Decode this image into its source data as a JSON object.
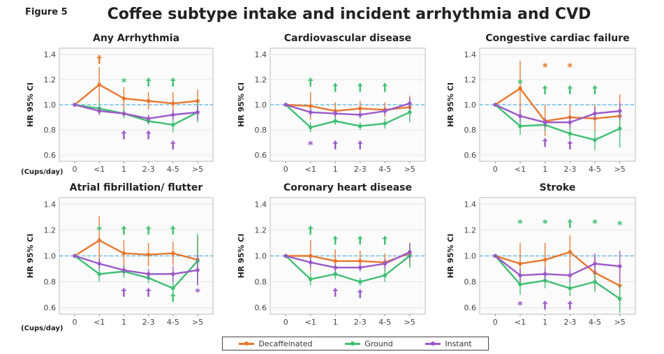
{
  "figure_label": "Figure 5",
  "title": "Coffee subtype intake and incident arrhythmia and CVD",
  "x_unit_label": "(Cups/day)",
  "legend": [
    {
      "name": "Decaffeinated",
      "color": "#e8772e"
    },
    {
      "name": "Ground",
      "color": "#3fbf72"
    },
    {
      "name": "Instant",
      "color": "#9b59c8"
    }
  ],
  "chart_data": [
    {
      "type": "line",
      "title": "Any Arrhythmia",
      "xlabel": "(Cups/day)",
      "ylabel": "HR 95% CI",
      "ylim": [
        0.55,
        1.45
      ],
      "yticks": [
        "0.6",
        "0.8",
        "1.0",
        "1.2",
        "1.4"
      ],
      "yticks_values": [
        0.6,
        0.8,
        1.0,
        1.2,
        1.4
      ],
      "categories": [
        "0",
        "<1",
        "1",
        "2-3",
        "4-5",
        ">5"
      ],
      "reference_line": 1.0,
      "series": [
        {
          "name": "Decaffeinated",
          "values": [
            1.0,
            1.16,
            1.05,
            1.03,
            1.01,
            1.03
          ],
          "lower": [
            1.0,
            1.02,
            0.96,
            0.96,
            0.92,
            0.94
          ],
          "upper": [
            1.0,
            1.3,
            1.14,
            1.1,
            1.1,
            1.12
          ]
        },
        {
          "name": "Ground",
          "values": [
            1.0,
            0.97,
            0.93,
            0.87,
            0.84,
            0.94
          ],
          "lower": [
            1.0,
            0.92,
            0.89,
            0.84,
            0.78,
            0.86
          ],
          "upper": [
            1.0,
            1.02,
            0.97,
            0.9,
            0.9,
            1.02
          ]
        },
        {
          "name": "Instant",
          "values": [
            1.0,
            0.95,
            0.93,
            0.89,
            0.92,
            0.94
          ],
          "lower": [
            1.0,
            0.92,
            0.91,
            0.86,
            0.88,
            0.88
          ],
          "upper": [
            1.0,
            0.98,
            0.95,
            0.92,
            0.96,
            1.0
          ]
        }
      ],
      "annotations": [
        {
          "symbol": "†",
          "series": "Decaffeinated",
          "category": "<1",
          "position": "above",
          "y": 1.36
        },
        {
          "symbol": "*",
          "series": "Ground",
          "category": "1",
          "position": "above",
          "y": 1.18
        },
        {
          "symbol": "†",
          "series": "Ground",
          "category": "2-3",
          "position": "above",
          "y": 1.18
        },
        {
          "symbol": "†",
          "series": "Ground",
          "category": "4-5",
          "position": "above",
          "y": 1.18
        },
        {
          "symbol": "†",
          "series": "Instant",
          "category": "1",
          "position": "below",
          "y": 0.76
        },
        {
          "symbol": "†",
          "series": "Instant",
          "category": "2-3",
          "position": "below",
          "y": 0.76
        },
        {
          "symbol": "†",
          "series": "Instant",
          "category": "4-5",
          "position": "below",
          "y": 0.68
        }
      ]
    },
    {
      "type": "line",
      "title": "Cardiovascular disease",
      "xlabel": "",
      "ylabel": "HR 95% CI",
      "ylim": [
        0.55,
        1.45
      ],
      "yticks": [
        "0.6",
        "0.8",
        "1.0",
        "1.2",
        "1.4"
      ],
      "yticks_values": [
        0.6,
        0.8,
        1.0,
        1.2,
        1.4
      ],
      "categories": [
        "0",
        "<1",
        "1",
        "2-3",
        "4-5",
        ">5"
      ],
      "reference_line": 1.0,
      "series": [
        {
          "name": "Decaffeinated",
          "values": [
            1.0,
            0.99,
            0.95,
            0.97,
            0.96,
            0.98
          ],
          "lower": [
            1.0,
            0.88,
            0.88,
            0.91,
            0.9,
            0.9
          ],
          "upper": [
            1.0,
            1.1,
            1.02,
            1.03,
            1.02,
            1.07
          ]
        },
        {
          "name": "Ground",
          "values": [
            1.0,
            0.82,
            0.87,
            0.83,
            0.85,
            0.94
          ],
          "lower": [
            1.0,
            0.78,
            0.84,
            0.8,
            0.81,
            0.86
          ],
          "upper": [
            1.0,
            0.86,
            0.9,
            0.86,
            0.89,
            1.02
          ]
        },
        {
          "name": "Instant",
          "values": [
            1.0,
            0.94,
            0.93,
            0.92,
            0.95,
            1.01
          ],
          "lower": [
            1.0,
            0.91,
            0.9,
            0.89,
            0.92,
            0.96
          ],
          "upper": [
            1.0,
            0.97,
            0.96,
            0.95,
            0.98,
            1.06
          ]
        }
      ],
      "annotations": [
        {
          "symbol": "†",
          "series": "Ground",
          "category": "<1",
          "position": "above",
          "y": 1.18
        },
        {
          "symbol": "†",
          "series": "Ground",
          "category": "1",
          "position": "above",
          "y": 1.14
        },
        {
          "symbol": "†",
          "series": "Ground",
          "category": "2-3",
          "position": "above",
          "y": 1.14
        },
        {
          "symbol": "†",
          "series": "Ground",
          "category": "4-5",
          "position": "above",
          "y": 1.14
        },
        {
          "symbol": "*",
          "series": "Instant",
          "category": "<1",
          "position": "below",
          "y": 0.68
        },
        {
          "symbol": "†",
          "series": "Instant",
          "category": "1",
          "position": "below",
          "y": 0.68
        },
        {
          "symbol": "†",
          "series": "Instant",
          "category": "2-3",
          "position": "below",
          "y": 0.68
        }
      ]
    },
    {
      "type": "line",
      "title": "Congestive cardiac failure",
      "xlabel": "",
      "ylabel": "HR 95% CI",
      "ylim": [
        0.55,
        1.45
      ],
      "yticks": [
        "0.6",
        "0.8",
        "1.0",
        "1.2",
        "1.4"
      ],
      "yticks_values": [
        0.6,
        0.8,
        1.0,
        1.2,
        1.4
      ],
      "categories": [
        "0",
        "<1",
        "1",
        "2-3",
        "4-5",
        ">5"
      ],
      "reference_line": 1.0,
      "series": [
        {
          "name": "Decaffeinated",
          "values": [
            1.0,
            1.13,
            0.87,
            0.9,
            0.89,
            0.91
          ],
          "lower": [
            1.0,
            0.92,
            0.75,
            0.8,
            0.8,
            0.8
          ],
          "upper": [
            1.0,
            1.35,
            1.0,
            1.0,
            1.0,
            1.08
          ]
        },
        {
          "name": "Ground",
          "values": [
            1.0,
            0.83,
            0.84,
            0.77,
            0.72,
            0.81
          ],
          "lower": [
            1.0,
            0.76,
            0.79,
            0.72,
            0.64,
            0.66
          ],
          "upper": [
            1.0,
            0.9,
            0.89,
            0.82,
            0.8,
            0.96
          ]
        },
        {
          "name": "Instant",
          "values": [
            1.0,
            0.91,
            0.86,
            0.86,
            0.93,
            0.95
          ],
          "lower": [
            1.0,
            0.86,
            0.82,
            0.82,
            0.88,
            0.88
          ],
          "upper": [
            1.0,
            0.96,
            0.9,
            0.9,
            0.98,
            1.02
          ]
        }
      ],
      "annotations": [
        {
          "symbol": "*",
          "series": "Ground",
          "category": "<1",
          "position": "above",
          "y": 1.17
        },
        {
          "symbol": "*",
          "series": "Decaffeinated",
          "category": "1",
          "position": "above",
          "y": 1.3
        },
        {
          "symbol": "*",
          "series": "Decaffeinated",
          "category": "2-3",
          "position": "above",
          "y": 1.3
        },
        {
          "symbol": "†",
          "series": "Ground",
          "category": "1",
          "position": "above",
          "y": 1.12
        },
        {
          "symbol": "†",
          "series": "Ground",
          "category": "2-3",
          "position": "above",
          "y": 1.12
        },
        {
          "symbol": "†",
          "series": "Ground",
          "category": "4-5",
          "position": "above",
          "y": 1.12
        },
        {
          "symbol": "†",
          "series": "Instant",
          "category": "1",
          "position": "below",
          "y": 0.7
        },
        {
          "symbol": "†",
          "series": "Instant",
          "category": "2-3",
          "position": "below",
          "y": 0.68
        }
      ]
    },
    {
      "type": "line",
      "title": "Atrial fibrillation/ flutter",
      "xlabel": "(Cups/day)",
      "ylabel": "HR 95% CI",
      "ylim": [
        0.55,
        1.45
      ],
      "yticks": [
        "0.6",
        "0.8",
        "1.0",
        "1.2",
        "1.4"
      ],
      "yticks_values": [
        0.6,
        0.8,
        1.0,
        1.2,
        1.4
      ],
      "categories": [
        "0",
        "<1",
        "1",
        "2-3",
        "4-5",
        ">5"
      ],
      "reference_line": 1.0,
      "series": [
        {
          "name": "Decaffeinated",
          "values": [
            1.0,
            1.12,
            1.02,
            1.01,
            1.02,
            0.97
          ],
          "lower": [
            1.0,
            0.95,
            0.92,
            0.92,
            0.93,
            0.78
          ],
          "upper": [
            1.0,
            1.31,
            1.12,
            1.1,
            1.11,
            1.15
          ]
        },
        {
          "name": "Ground",
          "values": [
            1.0,
            0.86,
            0.88,
            0.83,
            0.75,
            0.96
          ],
          "lower": [
            1.0,
            0.8,
            0.83,
            0.79,
            0.67,
            0.8
          ],
          "upper": [
            1.0,
            0.92,
            0.93,
            0.87,
            0.84,
            1.17
          ]
        },
        {
          "name": "Instant",
          "values": [
            1.0,
            0.94,
            0.89,
            0.86,
            0.86,
            0.89
          ],
          "lower": [
            1.0,
            0.9,
            0.86,
            0.82,
            0.8,
            0.77
          ],
          "upper": [
            1.0,
            0.98,
            0.92,
            0.9,
            0.92,
            1.01
          ]
        }
      ],
      "annotations": [
        {
          "symbol": "*",
          "series": "Ground",
          "category": "<1",
          "position": "above",
          "y": 1.2
        },
        {
          "symbol": "†",
          "series": "Ground",
          "category": "1",
          "position": "above",
          "y": 1.2
        },
        {
          "symbol": "†",
          "series": "Ground",
          "category": "2-3",
          "position": "above",
          "y": 1.2
        },
        {
          "symbol": "†",
          "series": "Ground",
          "category": "4-5",
          "position": "above",
          "y": 1.2
        },
        {
          "symbol": "†",
          "series": "Instant",
          "category": "1",
          "position": "below",
          "y": 0.72
        },
        {
          "symbol": "†",
          "series": "Instant",
          "category": "2-3",
          "position": "below",
          "y": 0.72
        },
        {
          "symbol": "†",
          "series": "Ground",
          "category": "4-5",
          "position": "below",
          "y": 0.68
        },
        {
          "symbol": "*",
          "series": "Instant",
          "category": ">5",
          "position": "below",
          "y": 0.72
        }
      ]
    },
    {
      "type": "line",
      "title": "Coronary heart disease",
      "xlabel": "",
      "ylabel": "HR 95% CI",
      "ylim": [
        0.55,
        1.45
      ],
      "yticks": [
        "0.6",
        "0.8",
        "1.0",
        "1.2",
        "1.4"
      ],
      "yticks_values": [
        0.6,
        0.8,
        1.0,
        1.2,
        1.4
      ],
      "categories": [
        "0",
        "<1",
        "1",
        "2-3",
        "4-5",
        ">5"
      ],
      "reference_line": 1.0,
      "series": [
        {
          "name": "Decaffeinated",
          "values": [
            1.0,
            1.0,
            0.96,
            0.96,
            0.95,
            1.02
          ],
          "lower": [
            1.0,
            0.88,
            0.88,
            0.89,
            0.88,
            0.92
          ],
          "upper": [
            1.0,
            1.12,
            1.05,
            1.04,
            1.02,
            1.1
          ]
        },
        {
          "name": "Ground",
          "values": [
            1.0,
            0.82,
            0.86,
            0.8,
            0.85,
            1.0
          ],
          "lower": [
            1.0,
            0.77,
            0.82,
            0.77,
            0.8,
            0.91
          ],
          "upper": [
            1.0,
            0.87,
            0.9,
            0.83,
            0.9,
            1.08
          ]
        },
        {
          "name": "Instant",
          "values": [
            1.0,
            0.95,
            0.91,
            0.91,
            0.94,
            1.03
          ],
          "lower": [
            1.0,
            0.91,
            0.88,
            0.88,
            0.9,
            0.96
          ],
          "upper": [
            1.0,
            0.99,
            0.94,
            0.94,
            0.98,
            1.1
          ]
        }
      ],
      "annotations": [
        {
          "symbol": "†",
          "series": "Ground",
          "category": "<1",
          "position": "above",
          "y": 1.2
        },
        {
          "symbol": "†",
          "series": "Ground",
          "category": "1",
          "position": "above",
          "y": 1.12
        },
        {
          "symbol": "†",
          "series": "Ground",
          "category": "2-3",
          "position": "above",
          "y": 1.12
        },
        {
          "symbol": "†",
          "series": "Ground",
          "category": "4-5",
          "position": "above",
          "y": 1.12
        },
        {
          "symbol": "†",
          "series": "Instant",
          "category": "1",
          "position": "below",
          "y": 0.72
        },
        {
          "symbol": "†",
          "series": "Instant",
          "category": "2-3",
          "position": "below",
          "y": 0.71
        }
      ]
    },
    {
      "type": "line",
      "title": "Stroke",
      "xlabel": "",
      "ylabel": "HR 95% CI",
      "ylim": [
        0.55,
        1.45
      ],
      "yticks": [
        "0.6",
        "0.8",
        "1.0",
        "1.2",
        "1.4"
      ],
      "yticks_values": [
        0.6,
        0.8,
        1.0,
        1.2,
        1.4
      ],
      "categories": [
        "0",
        "<1",
        "1",
        "2-3",
        "4-5",
        ">5"
      ],
      "reference_line": 1.0,
      "series": [
        {
          "name": "Decaffeinated",
          "values": [
            1.0,
            0.94,
            0.97,
            1.03,
            0.87,
            0.77
          ],
          "lower": [
            1.0,
            0.78,
            0.84,
            0.9,
            0.74,
            0.62
          ],
          "upper": [
            1.0,
            1.1,
            1.1,
            1.16,
            1.0,
            0.94
          ]
        },
        {
          "name": "Ground",
          "values": [
            1.0,
            0.78,
            0.81,
            0.75,
            0.8,
            0.67
          ],
          "lower": [
            1.0,
            0.7,
            0.75,
            0.69,
            0.72,
            0.56
          ],
          "upper": [
            1.0,
            0.86,
            0.87,
            0.81,
            0.88,
            0.78
          ]
        },
        {
          "name": "Instant",
          "values": [
            1.0,
            0.85,
            0.86,
            0.85,
            0.94,
            0.92
          ],
          "lower": [
            1.0,
            0.8,
            0.81,
            0.8,
            0.86,
            0.8
          ],
          "upper": [
            1.0,
            0.9,
            0.91,
            0.9,
            1.02,
            1.04
          ]
        }
      ],
      "annotations": [
        {
          "symbol": "*",
          "series": "Ground",
          "category": "<1",
          "position": "above",
          "y": 1.25
        },
        {
          "symbol": "*",
          "series": "Ground",
          "category": "1",
          "position": "above",
          "y": 1.25
        },
        {
          "symbol": "†",
          "series": "Ground",
          "category": "2-3",
          "position": "above",
          "y": 1.25
        },
        {
          "symbol": "*",
          "series": "Ground",
          "category": "4-5",
          "position": "above",
          "y": 1.25
        },
        {
          "symbol": "*",
          "series": "Ground",
          "category": ">5",
          "position": "above",
          "y": 1.24
        },
        {
          "symbol": "*",
          "series": "Instant",
          "category": "<1",
          "position": "below",
          "y": 0.62
        },
        {
          "symbol": "†",
          "series": "Instant",
          "category": "1",
          "position": "below",
          "y": 0.62
        },
        {
          "symbol": "†",
          "series": "Instant",
          "category": "2-3",
          "position": "below",
          "y": 0.62
        }
      ]
    }
  ]
}
